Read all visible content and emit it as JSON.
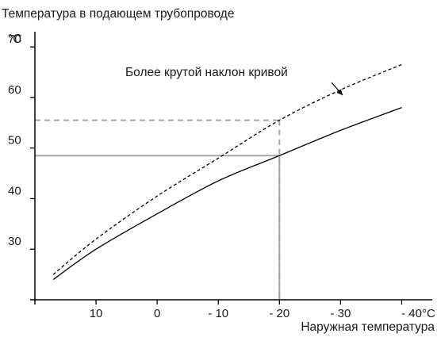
{
  "chart_data": {
    "type": "line",
    "title": "Температура в подающем трубопроводе",
    "y_unit": "°C",
    "xlabel": "Наружная температура",
    "x_ticks": [
      {
        "value": 10,
        "label": "10"
      },
      {
        "value": 0,
        "label": "0"
      },
      {
        "value": -10,
        "label": "- 10"
      },
      {
        "value": -20,
        "label": "- 20"
      },
      {
        "value": -30,
        "label": "- 30"
      },
      {
        "value": -40,
        "label": "- 40°C"
      }
    ],
    "y_ticks": [
      {
        "value": 70,
        "label": "70"
      },
      {
        "value": 60,
        "label": "60"
      },
      {
        "value": 50,
        "label": "50"
      },
      {
        "value": 40,
        "label": "40"
      },
      {
        "value": 30,
        "label": "30"
      }
    ],
    "xlim": [
      20,
      -45
    ],
    "ylim": [
      20,
      73
    ],
    "grid": false,
    "annotation": "Более крутой наклон кривой",
    "series": [
      {
        "style": "solid",
        "color": "#000000",
        "points": [
          [
            17,
            24
          ],
          [
            10,
            30
          ],
          [
            0,
            37
          ],
          [
            -10,
            43.5
          ],
          [
            -20,
            48.5
          ],
          [
            -30,
            53.5
          ],
          [
            -40,
            58
          ]
        ]
      },
      {
        "style": "dashed",
        "color": "#000000",
        "points": [
          [
            17,
            25
          ],
          [
            10,
            32
          ],
          [
            0,
            40.5
          ],
          [
            -10,
            48
          ],
          [
            -20,
            55.5
          ],
          [
            -30,
            61.5
          ],
          [
            -40,
            66.5
          ]
        ]
      }
    ],
    "reference_lines": [
      {
        "style": "solid",
        "color": "#a6a6a6",
        "x": -20,
        "y": 48.5
      },
      {
        "style": "dashed",
        "color": "#a6a6a6",
        "x": -20,
        "y": 55.5
      }
    ]
  }
}
